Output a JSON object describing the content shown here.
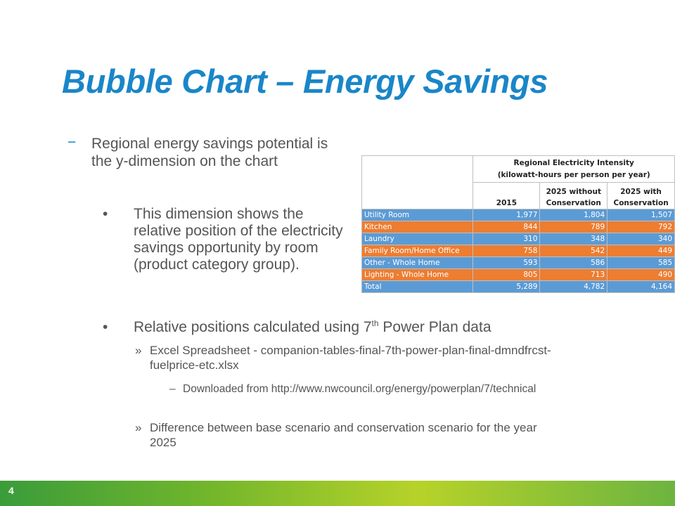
{
  "slide": {
    "title": "Bubble Chart – Energy Savings",
    "page_number": "4",
    "bullets": {
      "b1_marker": "−",
      "b1": "Regional energy savings potential is the y-dimension on the chart",
      "b2_marker": "•",
      "b2": "This dimension shows the relative position of the electricity savings opportunity by room (product category group).",
      "b3_marker": "•",
      "b3_pre": "Relative positions calculated using 7",
      "b3_sup": "th",
      "b3_post": " Power Plan data",
      "b4_marker": "»",
      "b4": "Excel Spreadsheet - companion-tables-final-7th-power-plan-final-dmndfrcst-fuelprice-etc.xlsx",
      "b5_marker": "–",
      "b5": "Downloaded from http://www.nwcouncil.org/energy/powerplan/7/technical",
      "b6_marker": "»",
      "b6": "Difference between base scenario and conservation scenario for the year 2025"
    }
  },
  "table": {
    "title_line1": "Regional Electricity Intensity",
    "title_line2": "(kilowatt-hours per person per year)",
    "col_2015": "2015",
    "col_without_1": "2025 without",
    "col_without_2": "Conservation",
    "col_with_1": "2025 with",
    "col_with_2": "Conservation",
    "rows": [
      {
        "label": "Utility Room",
        "v2015": "1,977",
        "without": "1,804",
        "with": "1,507",
        "color": "#5b9bd5"
      },
      {
        "label": "Kitchen",
        "v2015": "844",
        "without": "789",
        "with": "792",
        "color": "#ed7d31"
      },
      {
        "label": "Laundry",
        "v2015": "310",
        "without": "348",
        "with": "340",
        "color": "#5b9bd5"
      },
      {
        "label": "Family Room/Home Office",
        "v2015": "758",
        "without": "542",
        "with": "449",
        "color": "#ed7d31"
      },
      {
        "label": "Other - Whole Home",
        "v2015": "593",
        "without": "586",
        "with": "585",
        "color": "#5b9bd5"
      },
      {
        "label": "Lighting - Whole Home",
        "v2015": "805",
        "without": "713",
        "with": "490",
        "color": "#ed7d31"
      },
      {
        "label": "Total",
        "v2015": "5,289",
        "without": "4,782",
        "with": "4,164",
        "color": "#5b9bd5"
      }
    ]
  },
  "colors": {
    "title": "#1a86c8",
    "body_text": "#555555",
    "row_blue": "#5b9bd5",
    "row_orange": "#ed7d31",
    "footer_green": "#70b52c"
  }
}
